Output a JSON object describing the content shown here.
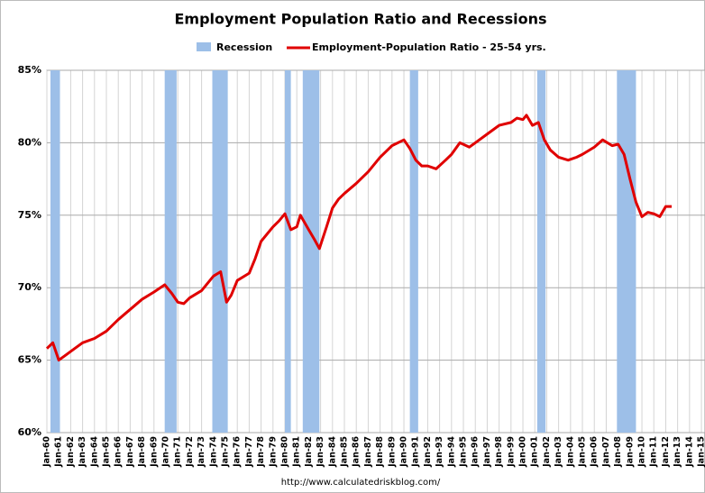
{
  "chart_data": {
    "type": "line",
    "title": "Employment Population Ratio and Recessions",
    "footer": "http://www.calculatedriskblog.com/",
    "recession_name": "Recession",
    "recession_color": "#9dbfe8",
    "recessions": [
      [
        1960.3,
        1961.1
      ],
      [
        1969.9,
        1970.9
      ],
      [
        1973.9,
        1975.2
      ],
      [
        1980.0,
        1980.5
      ],
      [
        1981.5,
        1982.9
      ],
      [
        1990.5,
        1991.2
      ],
      [
        2001.2,
        2001.9
      ],
      [
        2007.9,
        2009.5
      ]
    ],
    "x": [
      1960,
      1960.5,
      1961,
      1961.5,
      1962,
      1963,
      1964,
      1965,
      1966,
      1967,
      1968,
      1969,
      1969.9,
      1970.5,
      1971,
      1971.5,
      1972,
      1973,
      1974,
      1974.6,
      1975.1,
      1975.5,
      1976,
      1977,
      1977.5,
      1978,
      1979,
      1979.5,
      1980,
      1980.5,
      1981,
      1981.3,
      1982,
      1982.5,
      1982.9,
      1983.5,
      1984,
      1984.5,
      1985,
      1986,
      1987,
      1988,
      1989,
      1990,
      1990.5,
      1991,
      1991.5,
      1992,
      1992.7,
      1993.5,
      1994,
      1994.7,
      1995.5,
      1996,
      1997,
      1998,
      1999,
      1999.5,
      2000,
      2000.3,
      2000.8,
      2001.3,
      2001.8,
      2002.3,
      2003,
      2003.8,
      2004.5,
      2005,
      2006,
      2006.7,
      2007.5,
      2008,
      2008.5,
      2009,
      2009.5,
      2010,
      2010.5,
      2011,
      2011.5,
      2012,
      2012.5
    ],
    "series": [
      {
        "name": "Employment-Population Ratio - 25-54 yrs.",
        "color": "#e00000",
        "values": [
          65.8,
          66.2,
          65.0,
          65.3,
          65.6,
          66.2,
          66.5,
          67.0,
          67.8,
          68.5,
          69.2,
          69.7,
          70.2,
          69.6,
          69.0,
          68.9,
          69.3,
          69.8,
          70.8,
          71.1,
          69.0,
          69.5,
          70.5,
          71.0,
          72.0,
          73.2,
          74.2,
          74.6,
          75.1,
          74.0,
          74.2,
          75.0,
          74.0,
          73.3,
          72.7,
          74.2,
          75.5,
          76.1,
          76.5,
          77.2,
          78.0,
          79.0,
          79.8,
          80.2,
          79.6,
          78.8,
          78.4,
          78.4,
          78.2,
          78.8,
          79.2,
          80.0,
          79.7,
          80.0,
          80.6,
          81.2,
          81.4,
          81.7,
          81.6,
          81.9,
          81.2,
          81.4,
          80.2,
          79.5,
          79.0,
          78.8,
          79.0,
          79.2,
          79.7,
          80.2,
          79.8,
          79.9,
          79.2,
          77.5,
          75.9,
          74.9,
          75.2,
          75.1,
          74.9,
          75.6,
          75.6
        ]
      }
    ],
    "xlim": [
      1960,
      2015.3
    ],
    "ylim": [
      60,
      85
    ],
    "yticks": [
      {
        "value": 60,
        "label": "60%"
      },
      {
        "value": 65,
        "label": "65%"
      },
      {
        "value": 70,
        "label": "70%"
      },
      {
        "value": 75,
        "label": "75%"
      },
      {
        "value": 80,
        "label": "80%"
      },
      {
        "value": 85,
        "label": "85%"
      }
    ],
    "xticks": [
      {
        "value": 1960,
        "label": "Jan-60"
      },
      {
        "value": 1961,
        "label": "Jan-61"
      },
      {
        "value": 1962,
        "label": "Jan-62"
      },
      {
        "value": 1963,
        "label": "Jan-63"
      },
      {
        "value": 1964,
        "label": "Jan-64"
      },
      {
        "value": 1965,
        "label": "Jan-65"
      },
      {
        "value": 1966,
        "label": "Jan-66"
      },
      {
        "value": 1967,
        "label": "Jan-67"
      },
      {
        "value": 1968,
        "label": "Jan-68"
      },
      {
        "value": 1969,
        "label": "Jan-69"
      },
      {
        "value": 1970,
        "label": "Jan-70"
      },
      {
        "value": 1971,
        "label": "Jan-71"
      },
      {
        "value": 1972,
        "label": "Jan-72"
      },
      {
        "value": 1973,
        "label": "Jan-73"
      },
      {
        "value": 1974,
        "label": "Jan-74"
      },
      {
        "value": 1975,
        "label": "Jan-75"
      },
      {
        "value": 1976,
        "label": "Jan-76"
      },
      {
        "value": 1977,
        "label": "Jan-77"
      },
      {
        "value": 1978,
        "label": "Jan-78"
      },
      {
        "value": 1979,
        "label": "Jan-79"
      },
      {
        "value": 1980,
        "label": "Jan-80"
      },
      {
        "value": 1981,
        "label": "Jan-81"
      },
      {
        "value": 1982,
        "label": "Jan-82"
      },
      {
        "value": 1983,
        "label": "Jan-83"
      },
      {
        "value": 1984,
        "label": "Jan-84"
      },
      {
        "value": 1985,
        "label": "Jan-85"
      },
      {
        "value": 1986,
        "label": "Jan-86"
      },
      {
        "value": 1987,
        "label": "Jan-87"
      },
      {
        "value": 1988,
        "label": "Jan-88"
      },
      {
        "value": 1989,
        "label": "Jan-89"
      },
      {
        "value": 1990,
        "label": "Jan-90"
      },
      {
        "value": 1991,
        "label": "Jan-91"
      },
      {
        "value": 1992,
        "label": "Jan-92"
      },
      {
        "value": 1993,
        "label": "Jan-93"
      },
      {
        "value": 1994,
        "label": "Jan-94"
      },
      {
        "value": 1995,
        "label": "Jan-95"
      },
      {
        "value": 1996,
        "label": "Jan-96"
      },
      {
        "value": 1997,
        "label": "Jan-97"
      },
      {
        "value": 1998,
        "label": "Jan-98"
      },
      {
        "value": 1999,
        "label": "Jan-99"
      },
      {
        "value": 2000,
        "label": "Jan-00"
      },
      {
        "value": 2001,
        "label": "Jan-01"
      },
      {
        "value": 2002,
        "label": "Jan-02"
      },
      {
        "value": 2003,
        "label": "Jan-03"
      },
      {
        "value": 2004,
        "label": "Jan-04"
      },
      {
        "value": 2005,
        "label": "Jan-05"
      },
      {
        "value": 2006,
        "label": "Jan-06"
      },
      {
        "value": 2007,
        "label": "Jan-07"
      },
      {
        "value": 2008,
        "label": "Jan-08"
      },
      {
        "value": 2009,
        "label": "Jan-09"
      },
      {
        "value": 2010,
        "label": "Jan-10"
      },
      {
        "value": 2011,
        "label": "Jan-11"
      },
      {
        "value": 2012,
        "label": "Jan-12"
      },
      {
        "value": 2013,
        "label": "Jan-13"
      },
      {
        "value": 2014,
        "label": "Jan-14"
      },
      {
        "value": 2015,
        "label": "Jan-15"
      }
    ],
    "grid": true
  }
}
